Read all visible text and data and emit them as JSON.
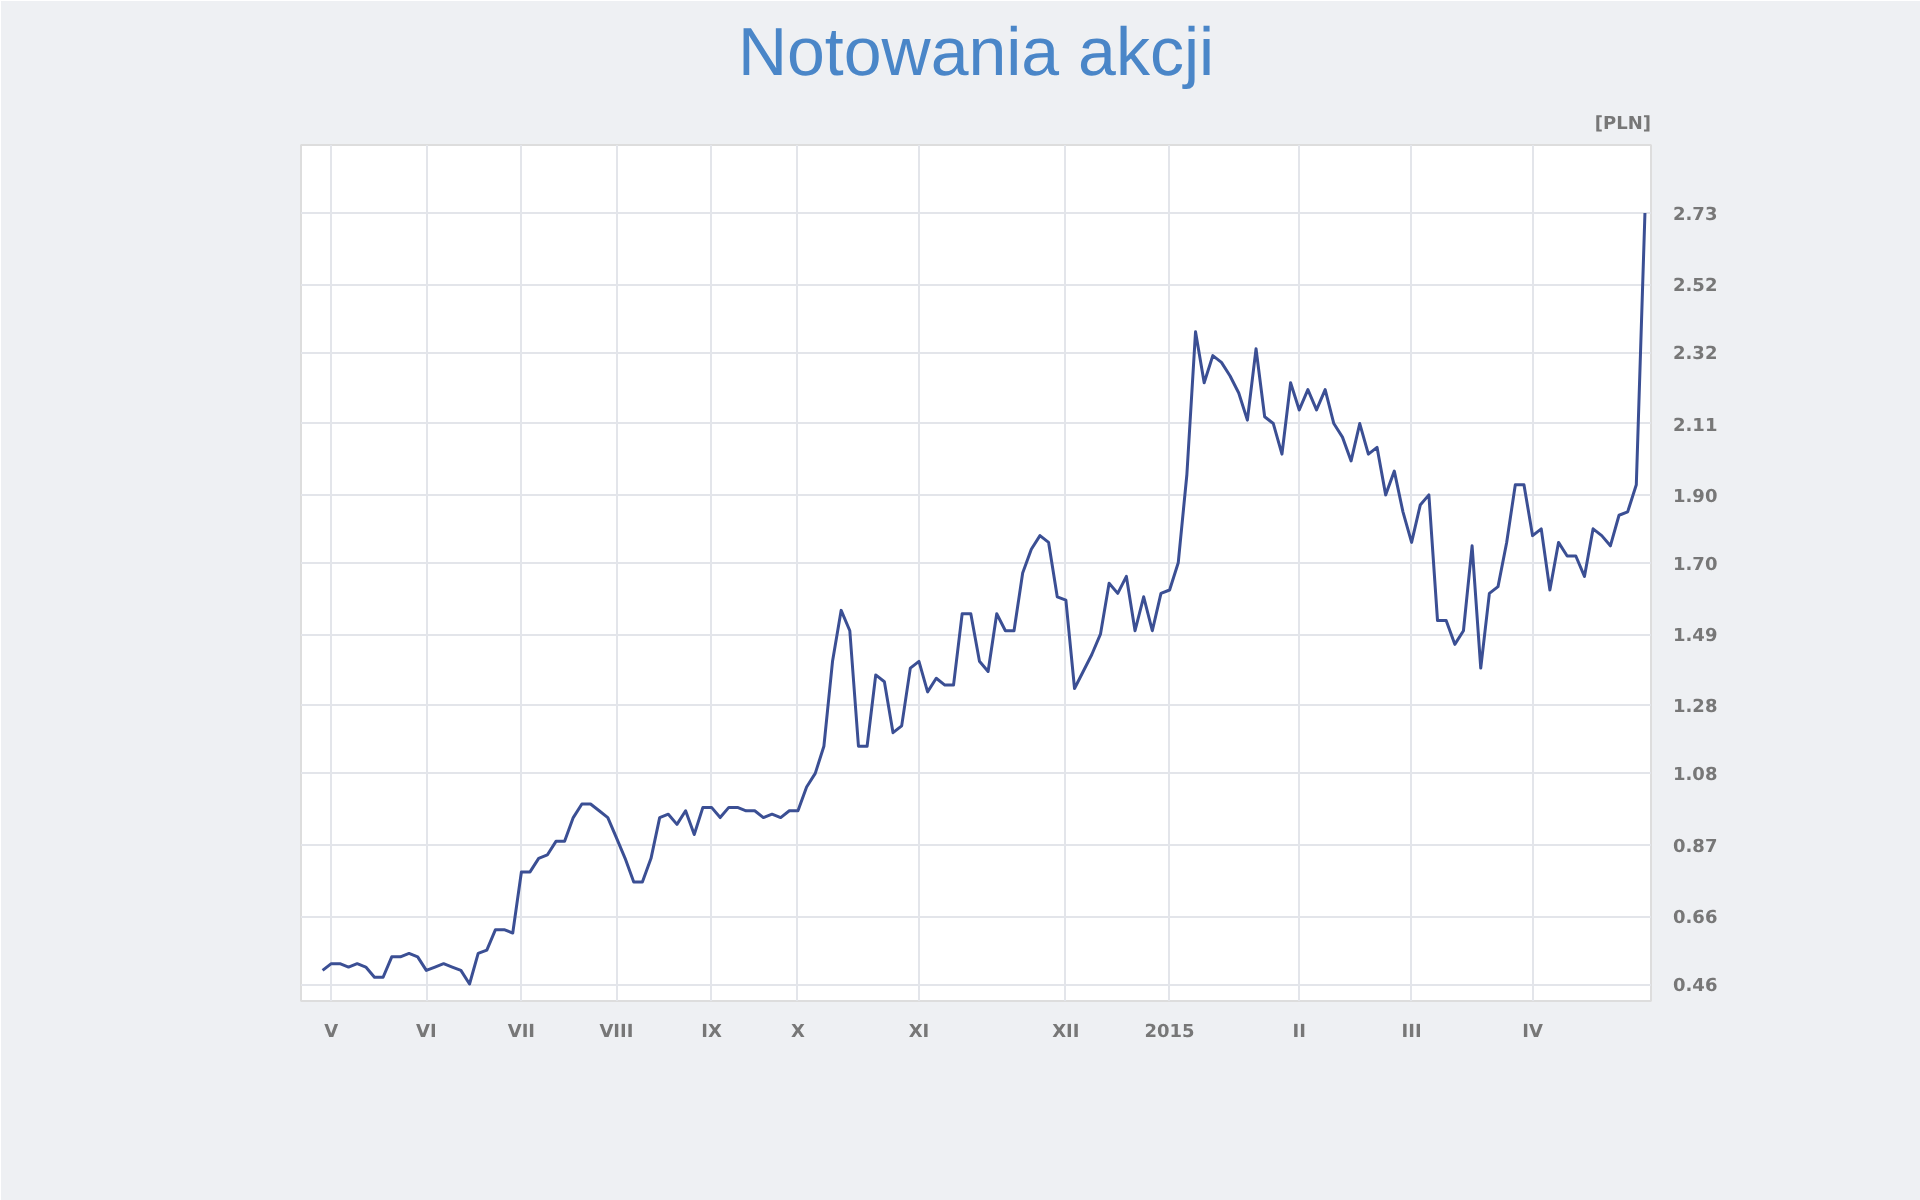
{
  "chart_data": {
    "type": "line",
    "title": "Notowania akcji",
    "ylabel": "[PLN]",
    "categories": [
      null,
      "V",
      null,
      null,
      null,
      null,
      null,
      null,
      null,
      null,
      null,
      null,
      "VI",
      null,
      null,
      null,
      null,
      null,
      null,
      null,
      null,
      null,
      null,
      "VII",
      null,
      null,
      null,
      null,
      null,
      null,
      null,
      null,
      null,
      null,
      "VIII",
      null,
      null,
      null,
      null,
      null,
      null,
      null,
      null,
      null,
      null,
      "IX",
      null,
      null,
      null,
      null,
      null,
      null,
      null,
      null,
      null,
      "X",
      null,
      null,
      null,
      null,
      null,
      null,
      null,
      null,
      null,
      null,
      null,
      null,
      null,
      "XI",
      null,
      null,
      null,
      null,
      null,
      null,
      null,
      null,
      null,
      null,
      null,
      null,
      null,
      null,
      null,
      null,
      "XII",
      null,
      null,
      null,
      null,
      null,
      null,
      null,
      null,
      null,
      null,
      null,
      "2015",
      null,
      null,
      null,
      null,
      null,
      null,
      null,
      null,
      null,
      null,
      null,
      null,
      null,
      null,
      "II",
      null,
      null,
      null,
      null,
      null,
      null,
      null,
      null,
      null,
      null,
      null,
      null,
      "III",
      null,
      null,
      null,
      null,
      null,
      null,
      null,
      null,
      null,
      null,
      null,
      null,
      null,
      "IV",
      null,
      null,
      null,
      null,
      null,
      null,
      null,
      null,
      null,
      null,
      null,
      null,
      null
    ],
    "series": [
      {
        "color": "#3b4f94",
        "values": [
          0.5,
          0.52,
          0.52,
          0.51,
          0.52,
          0.51,
          0.48,
          0.48,
          0.54,
          0.54,
          0.55,
          0.54,
          0.5,
          0.51,
          0.52,
          0.51,
          0.5,
          0.46,
          0.55,
          0.56,
          0.62,
          0.62,
          0.61,
          0.79,
          0.79,
          0.83,
          0.84,
          0.88,
          0.88,
          0.95,
          0.99,
          0.99,
          0.97,
          0.95,
          0.89,
          0.83,
          0.76,
          0.76,
          0.83,
          0.95,
          0.96,
          0.93,
          0.97,
          0.9,
          0.98,
          0.98,
          0.95,
          0.98,
          0.98,
          0.97,
          0.97,
          0.95,
          0.96,
          0.95,
          0.97,
          0.97,
          1.04,
          1.08,
          1.16,
          1.41,
          1.56,
          1.5,
          1.16,
          1.16,
          1.37,
          1.35,
          1.2,
          1.22,
          1.39,
          1.41,
          1.32,
          1.36,
          1.34,
          1.34,
          1.55,
          1.55,
          1.41,
          1.38,
          1.55,
          1.5,
          1.5,
          1.67,
          1.74,
          1.78,
          1.76,
          1.6,
          1.59,
          1.33,
          1.38,
          1.43,
          1.49,
          1.64,
          1.61,
          1.66,
          1.5,
          1.6,
          1.5,
          1.61,
          1.62,
          1.7,
          1.96,
          2.38,
          2.23,
          2.31,
          2.29,
          2.25,
          2.2,
          2.12,
          2.33,
          2.13,
          2.11,
          2.02,
          2.23,
          2.15,
          2.21,
          2.15,
          2.21,
          2.11,
          2.07,
          2.0,
          2.11,
          2.02,
          2.04,
          1.9,
          1.97,
          1.85,
          1.76,
          1.87,
          1.9,
          1.53,
          1.53,
          1.46,
          1.5,
          1.75,
          1.39,
          1.61,
          1.63,
          1.76,
          1.93,
          1.93,
          1.78,
          1.8,
          1.62,
          1.76,
          1.72,
          1.72,
          1.66,
          1.8,
          1.78,
          1.75,
          1.84,
          1.85,
          1.93,
          2.73
        ]
      }
    ],
    "ylim": [
      0.41,
      2.93
    ],
    "yticks": [
      {
        "value": 0.46,
        "label": "0.46"
      },
      {
        "value": 0.66,
        "label": "0.66"
      },
      {
        "value": 0.87,
        "label": "0.87"
      },
      {
        "value": 1.08,
        "label": "1.08"
      },
      {
        "value": 1.28,
        "label": "1.28"
      },
      {
        "value": 1.49,
        "label": "1.49"
      },
      {
        "value": 1.7,
        "label": "1.70"
      },
      {
        "value": 1.9,
        "label": "1.90"
      },
      {
        "value": 2.11,
        "label": "2.11"
      },
      {
        "value": 2.32,
        "label": "2.32"
      },
      {
        "value": 2.52,
        "label": "2.52"
      },
      {
        "value": 2.73,
        "label": "2.73"
      }
    ],
    "grid": true,
    "marker": "none",
    "line_style": "solid"
  }
}
